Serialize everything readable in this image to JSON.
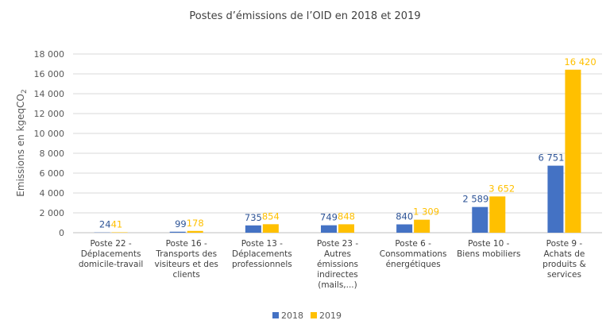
{
  "chart_data": {
    "type": "bar",
    "title": "Postes d’émissions de l’OID en 2018 et 2019",
    "ylabel": "Emissions en kgeqCO2",
    "ylim": [
      0,
      18000
    ],
    "yticks": [
      0,
      2000,
      4000,
      6000,
      8000,
      10000,
      12000,
      14000,
      16000,
      18000
    ],
    "ytick_labels": [
      "0",
      "2 000",
      "4 000",
      "6 000",
      "8 000",
      "10 000",
      "12 000",
      "14 000",
      "16 000",
      "18 000"
    ],
    "grid": true,
    "legend_position": "bottom",
    "categories": [
      [
        "Poste 22 -",
        "Déplacements",
        "domicile-travail"
      ],
      [
        "Poste 16 -",
        "Transports des",
        "visiteurs et des",
        "clients"
      ],
      [
        "Poste 13 -",
        "Déplacements",
        "professionnels"
      ],
      [
        "Poste 23 -",
        "Autres",
        "émissions",
        "indirectes",
        "(mails,...)"
      ],
      [
        "Poste 6 -",
        "Consommations",
        "énergétiques"
      ],
      [
        "Poste 10 -",
        "Biens mobiliers"
      ],
      [
        "Poste 9 -",
        "Achats de",
        "produits &",
        "services"
      ]
    ],
    "series": [
      {
        "name": "2018",
        "color": "#4472C4",
        "values": [
          24,
          99,
          735,
          749,
          840,
          2589,
          6751
        ],
        "labels": [
          "24",
          "99",
          "735",
          "749",
          "840",
          "2 589",
          "6 751"
        ]
      },
      {
        "name": "2019",
        "color": "#FFC000",
        "values": [
          41,
          178,
          854,
          848,
          1309,
          3652,
          16420
        ],
        "labels": [
          "41",
          "178",
          "854",
          "848",
          "1 309",
          "3 652",
          "16 420"
        ]
      }
    ]
  }
}
